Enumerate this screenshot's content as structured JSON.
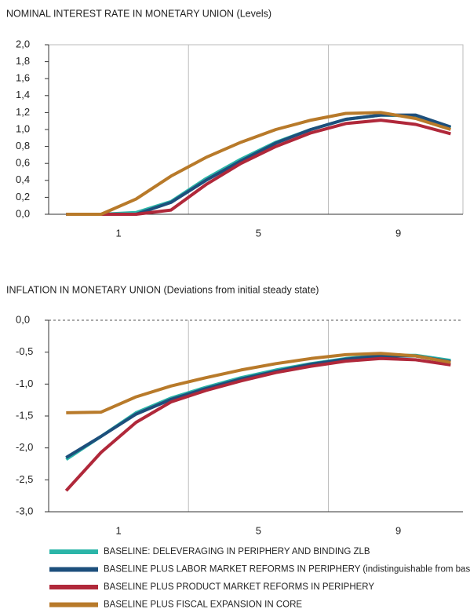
{
  "chart_data": [
    {
      "type": "line",
      "title": "NOMINAL INTEREST RATE IN MONETARY UNION (Levels)",
      "x": [
        -0.5,
        0.5,
        1.5,
        2.5,
        3.5,
        4.5,
        5.5,
        6.5,
        7.5,
        8.5,
        9.5,
        10.5
      ],
      "xlim": [
        -1,
        10.85
      ],
      "xticks": [
        1,
        5,
        9
      ],
      "ylim": [
        0,
        2
      ],
      "yticks": [
        {
          "value": 0,
          "label": "0,0"
        },
        {
          "value": 0.2,
          "label": "0,2"
        },
        {
          "value": 0.4,
          "label": "0,4"
        },
        {
          "value": 0.6,
          "label": "0,6"
        },
        {
          "value": 0.8,
          "label": "0,8"
        },
        {
          "value": 1,
          "label": "1,0"
        },
        {
          "value": 1.2,
          "label": "1,2"
        },
        {
          "value": 1.4,
          "label": "1,4"
        },
        {
          "value": 1.6,
          "label": "1,6"
        },
        {
          "value": 1.8,
          "label": "1,8"
        },
        {
          "value": 2,
          "label": "2,0"
        }
      ],
      "series": [
        {
          "name": "BASELINE: DELEVERAGING IN PERIPHERY AND BINDING ZLB",
          "color": "#2bb5a8",
          "values": [
            0,
            0,
            0.02,
            0.15,
            0.42,
            0.65,
            0.85,
            1.0,
            1.12,
            1.17,
            1.16,
            1.02
          ]
        },
        {
          "name": "BASELINE PLUS LABOR MARKET REFORMS IN PERIPHERY (indistinguishable from baseline)",
          "color": "#1d4f7c",
          "values": [
            0,
            0,
            0,
            0.14,
            0.4,
            0.63,
            0.84,
            1.0,
            1.12,
            1.17,
            1.17,
            1.03
          ]
        },
        {
          "name": "BASELINE PLUS PRODUCT MARKET REFORMS IN PERIPHERY",
          "color": "#b0283a",
          "values": [
            0,
            0,
            0,
            0.05,
            0.35,
            0.6,
            0.8,
            0.96,
            1.07,
            1.11,
            1.06,
            0.95
          ]
        },
        {
          "name": "BASELINE PLUS FISCAL EXPANSION IN CORE",
          "color": "#b87a2a",
          "values": [
            0,
            0,
            0.18,
            0.45,
            0.67,
            0.85,
            1.0,
            1.11,
            1.19,
            1.2,
            1.13,
            1.0
          ]
        }
      ]
    },
    {
      "type": "line",
      "title": "INFLATION IN MONETARY UNION (Deviations from initial steady state)",
      "x": [
        -0.5,
        0.5,
        1.5,
        2.5,
        3.5,
        4.5,
        5.5,
        6.5,
        7.5,
        8.5,
        9.5,
        10.5
      ],
      "xlim": [
        -1,
        10.85
      ],
      "xticks": [
        1,
        5,
        9
      ],
      "ylim": [
        -3,
        0
      ],
      "yticks": [
        {
          "value": -3,
          "label": "-3,0"
        },
        {
          "value": -2.5,
          "label": "-2,5"
        },
        {
          "value": -2,
          "label": "-2,0"
        },
        {
          "value": -1.5,
          "label": "-1,5"
        },
        {
          "value": -1,
          "label": "-1,0"
        },
        {
          "value": -0.5,
          "label": "-0,5"
        },
        {
          "value": 0,
          "label": "0,0"
        }
      ],
      "series": [
        {
          "name": "BASELINE: DELEVERAGING IN PERIPHERY AND BINDING ZLB",
          "color": "#2bb5a8",
          "values": [
            -2.18,
            -1.82,
            -1.45,
            -1.22,
            -1.05,
            -0.9,
            -0.78,
            -0.68,
            -0.6,
            -0.55,
            -0.55,
            -0.63
          ]
        },
        {
          "name": "BASELINE PLUS LABOR MARKET REFORMS IN PERIPHERY (indistinguishable from baseline)",
          "color": "#1d4f7c",
          "values": [
            -2.15,
            -1.82,
            -1.47,
            -1.24,
            -1.07,
            -0.92,
            -0.8,
            -0.69,
            -0.61,
            -0.56,
            -0.56,
            -0.65
          ]
        },
        {
          "name": "BASELINE PLUS PRODUCT MARKET REFORMS IN PERIPHERY",
          "color": "#b0283a",
          "values": [
            -2.67,
            -2.07,
            -1.6,
            -1.28,
            -1.1,
            -0.95,
            -0.82,
            -0.72,
            -0.64,
            -0.6,
            -0.62,
            -0.7
          ]
        },
        {
          "name": "BASELINE PLUS FISCAL EXPANSION IN CORE",
          "color": "#b87a2a",
          "values": [
            -1.45,
            -1.44,
            -1.2,
            -1.03,
            -0.9,
            -0.78,
            -0.68,
            -0.6,
            -0.54,
            -0.52,
            -0.56,
            -0.66
          ]
        }
      ]
    }
  ]
}
